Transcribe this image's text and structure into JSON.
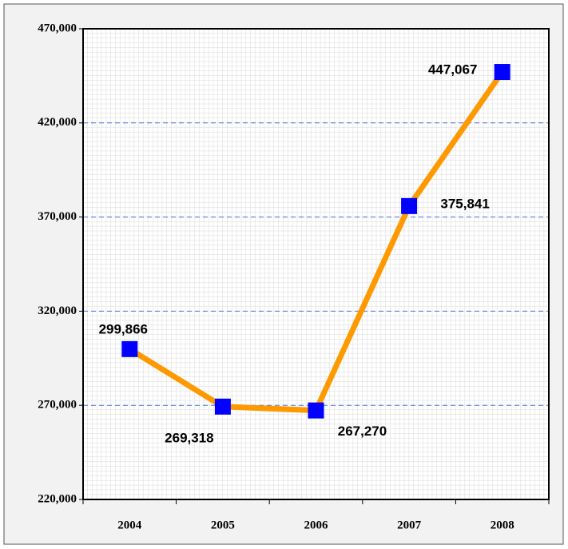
{
  "chart_data": {
    "type": "line",
    "categories": [
      "2004",
      "2005",
      "2006",
      "2007",
      "2008"
    ],
    "series": [
      {
        "name": null,
        "color": "#ff9900",
        "marker_color": "#0000ff",
        "values": [
          299866,
          269318,
          267270,
          375841,
          447067
        ],
        "value_labels": [
          "299,866",
          "269,318",
          "267,270",
          "375,841",
          "447,067"
        ]
      }
    ],
    "ylim": [
      220000,
      470000
    ],
    "yticks": [
      {
        "value": 220000,
        "label": "220,000"
      },
      {
        "value": 270000,
        "label": "270,000"
      },
      {
        "value": 320000,
        "label": "320,000"
      },
      {
        "value": 370000,
        "label": "370,000"
      },
      {
        "value": 420000,
        "label": "420,000"
      },
      {
        "value": 470000,
        "label": "470,000"
      }
    ],
    "grid": true
  }
}
